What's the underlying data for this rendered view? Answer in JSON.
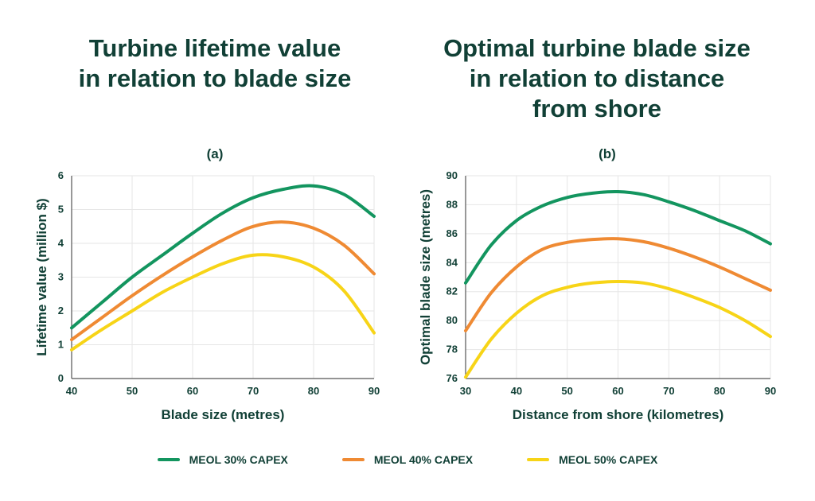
{
  "titles": {
    "a": "Turbine lifetime value\nin relation to blade size",
    "b": "Optimal turbine blade size\nin relation to distance\nfrom shore"
  },
  "panel_labels": {
    "a": "(a)",
    "b": "(b)"
  },
  "colors": {
    "s30": "#13955f",
    "s40": "#ef8a33",
    "s50": "#f7d417",
    "text": "#114036",
    "grid": "#e6e6e6"
  },
  "legend": [
    {
      "label": "MEOL 30% CAPEX",
      "color": "#13955f"
    },
    {
      "label": "MEOL 40% CAPEX",
      "color": "#ef8a33"
    },
    {
      "label": "MEOL 50% CAPEX",
      "color": "#f7d417"
    }
  ],
  "chart_data": [
    {
      "type": "line",
      "id": "a",
      "title": "Turbine lifetime value in relation to blade size",
      "xlabel": "Blade size (metres)",
      "ylabel": "Lifetime value (million $)",
      "xlim": [
        40,
        90
      ],
      "ylim": [
        0,
        6
      ],
      "xticks": [
        40,
        50,
        60,
        70,
        80,
        90
      ],
      "yticks": [
        0,
        1,
        2,
        3,
        4,
        5,
        6
      ],
      "grid": true,
      "series": [
        {
          "name": "MEOL 30% CAPEX",
          "color": "#13955f",
          "x": [
            40,
            45,
            50,
            55,
            60,
            65,
            70,
            75,
            80,
            85,
            90
          ],
          "y": [
            1.5,
            2.25,
            3.0,
            3.65,
            4.3,
            4.9,
            5.35,
            5.6,
            5.7,
            5.45,
            4.8
          ]
        },
        {
          "name": "MEOL 40% CAPEX",
          "color": "#ef8a33",
          "x": [
            40,
            45,
            50,
            55,
            60,
            65,
            70,
            75,
            80,
            85,
            90
          ],
          "y": [
            1.15,
            1.8,
            2.45,
            3.05,
            3.6,
            4.1,
            4.5,
            4.63,
            4.45,
            3.95,
            3.1
          ]
        },
        {
          "name": "MEOL 50% CAPEX",
          "color": "#f7d417",
          "x": [
            40,
            45,
            50,
            55,
            60,
            65,
            70,
            75,
            80,
            85,
            90
          ],
          "y": [
            0.85,
            1.45,
            2.0,
            2.55,
            3.0,
            3.4,
            3.65,
            3.6,
            3.3,
            2.6,
            1.35
          ]
        }
      ]
    },
    {
      "type": "line",
      "id": "b",
      "title": "Optimal turbine blade size in relation to distance from shore",
      "xlabel": "Distance from shore (kilometres)",
      "ylabel": "Optimal blade size (metres)",
      "xlim": [
        30,
        90
      ],
      "ylim": [
        76,
        90
      ],
      "xticks": [
        30,
        40,
        50,
        60,
        70,
        80,
        90
      ],
      "yticks": [
        76,
        78,
        80,
        82,
        84,
        86,
        88,
        90
      ],
      "grid": true,
      "series": [
        {
          "name": "MEOL 30% CAPEX",
          "color": "#13955f",
          "x": [
            30,
            35,
            40,
            45,
            50,
            55,
            60,
            65,
            70,
            75,
            80,
            85,
            90
          ],
          "y": [
            82.6,
            85.2,
            86.9,
            87.9,
            88.5,
            88.8,
            88.9,
            88.7,
            88.2,
            87.6,
            86.9,
            86.2,
            85.3
          ]
        },
        {
          "name": "MEOL 40% CAPEX",
          "color": "#ef8a33",
          "x": [
            30,
            35,
            40,
            45,
            50,
            55,
            60,
            65,
            70,
            75,
            80,
            85,
            90
          ],
          "y": [
            79.3,
            81.9,
            83.7,
            84.9,
            85.4,
            85.6,
            85.65,
            85.45,
            85.0,
            84.4,
            83.7,
            82.9,
            82.1
          ]
        },
        {
          "name": "MEOL 50% CAPEX",
          "color": "#f7d417",
          "x": [
            30,
            35,
            40,
            45,
            50,
            55,
            60,
            65,
            70,
            75,
            80,
            85,
            90
          ],
          "y": [
            76.1,
            78.7,
            80.5,
            81.7,
            82.3,
            82.6,
            82.7,
            82.6,
            82.2,
            81.6,
            80.9,
            80.0,
            78.9
          ]
        }
      ]
    }
  ]
}
